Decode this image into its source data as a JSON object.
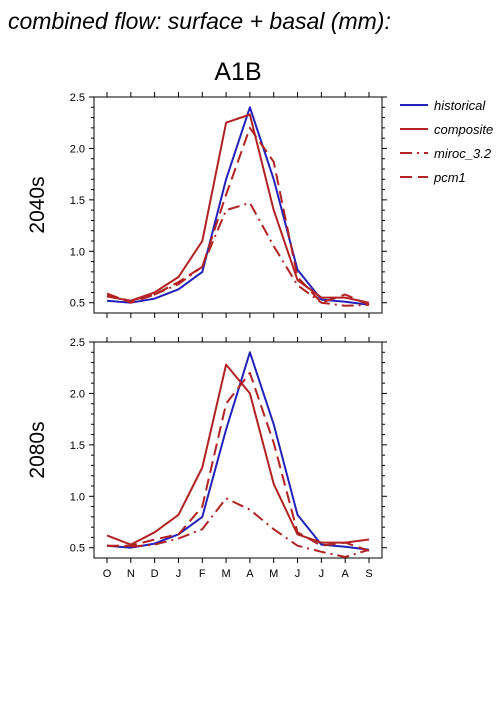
{
  "figure_title": "combined flow: surface + basal (mm):",
  "chart_data": {
    "type": "line",
    "scenario_title": "A1B",
    "categories": [
      "O",
      "N",
      "D",
      "J",
      "F",
      "M",
      "A",
      "M",
      "J",
      "J",
      "A",
      "S"
    ],
    "ylim": [
      0.4,
      2.5
    ],
    "yticks": [
      0.5,
      1.0,
      1.5,
      2.0,
      2.5
    ],
    "ytick_labels": [
      "0.5",
      "1.0",
      "1.5",
      "2.0",
      "2.5"
    ],
    "legend": [
      {
        "name": "historical",
        "color": "#2222bb",
        "dash": "solid"
      },
      {
        "name": "composite",
        "color": "#b22222",
        "dash": "solid"
      },
      {
        "name": "miroc_3.2",
        "color": "#b22222",
        "dash": "dashdot"
      },
      {
        "name": "pcm1",
        "color": "#b22222",
        "dash": "dashed"
      }
    ],
    "panels": [
      {
        "label": "2040s",
        "series": [
          {
            "name": "historical",
            "values": [
              0.52,
              0.5,
              0.54,
              0.63,
              0.8,
              1.7,
              2.4,
              1.7,
              0.82,
              0.53,
              0.51,
              0.48
            ]
          },
          {
            "name": "composite",
            "values": [
              0.56,
              0.52,
              0.6,
              0.75,
              1.1,
              2.25,
              2.33,
              1.4,
              0.72,
              0.55,
              0.55,
              0.5
            ]
          },
          {
            "name": "miroc_3.2",
            "values": [
              0.57,
              0.52,
              0.58,
              0.68,
              0.85,
              1.4,
              1.47,
              1.05,
              0.67,
              0.5,
              0.47,
              0.48
            ]
          },
          {
            "name": "pcm1",
            "values": [
              0.59,
              0.5,
              0.58,
              0.7,
              0.85,
              1.55,
              2.2,
              1.87,
              0.75,
              0.5,
              0.58,
              0.48
            ]
          }
        ]
      },
      {
        "label": "2080s",
        "series": [
          {
            "name": "historical",
            "values": [
              0.52,
              0.5,
              0.54,
              0.63,
              0.8,
              1.65,
              2.4,
              1.7,
              0.82,
              0.53,
              0.51,
              0.48
            ]
          },
          {
            "name": "composite",
            "values": [
              0.62,
              0.53,
              0.65,
              0.82,
              1.28,
              2.28,
              2.0,
              1.12,
              0.63,
              0.55,
              0.55,
              0.58
            ]
          },
          {
            "name": "miroc_3.2",
            "values": [
              0.52,
              0.51,
              0.53,
              0.59,
              0.68,
              0.98,
              0.87,
              0.68,
              0.52,
              0.46,
              0.41,
              0.48
            ]
          },
          {
            "name": "pcm1",
            "values": [
              0.52,
              0.52,
              0.58,
              0.63,
              0.9,
              1.9,
              2.2,
              1.52,
              0.65,
              0.52,
              0.55,
              0.47
            ]
          }
        ]
      }
    ]
  }
}
